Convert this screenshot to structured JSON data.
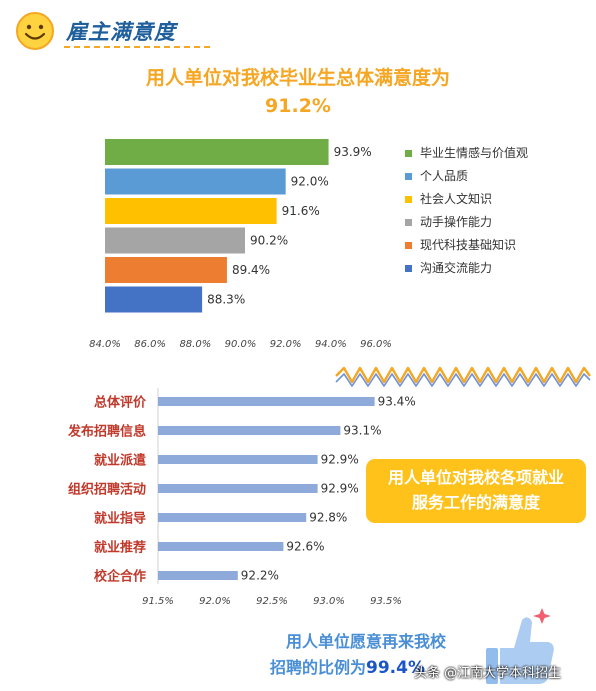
{
  "header": {
    "title": "雇主满意度"
  },
  "chart_data": [
    {
      "type": "bar",
      "orientation": "horizontal",
      "title": "用人单位对我校毕业生总体满意度为 91.2%",
      "title_line1": "用人单位对我校毕业生总体满意度为",
      "title_line2": "91.2%",
      "categories": [
        "毕业生情感与价值观",
        "个人品质",
        "社会人文知识",
        "动手操作能力",
        "现代科技基础知识",
        "沟通交流能力"
      ],
      "values": [
        93.9,
        92.0,
        91.6,
        90.2,
        89.4,
        88.3
      ],
      "value_labels": [
        "93.9%",
        "92.0%",
        "91.6%",
        "90.2%",
        "89.4%",
        "88.3%"
      ],
      "colors": [
        "#70ad47",
        "#5b9bd5",
        "#ffc000",
        "#a5a5a5",
        "#ed7d31",
        "#4472c4"
      ],
      "xlim": [
        84.0,
        96.0
      ],
      "x_ticks": [
        "84.0%",
        "86.0%",
        "88.0%",
        "90.0%",
        "92.0%",
        "94.0%",
        "96.0%"
      ],
      "legend_position": "right",
      "grid": false
    },
    {
      "type": "bar",
      "orientation": "horizontal",
      "title": "用人单位对我校各项就业服务工作的满意度",
      "title_line1": "用人单位对我校各项就业",
      "title_line2": "服务工作的满意度",
      "categories": [
        "总体评价",
        "发布招聘信息",
        "就业派遣",
        "组织招聘活动",
        "就业指导",
        "就业推荐",
        "校企合作"
      ],
      "values": [
        93.4,
        93.1,
        92.9,
        92.9,
        92.8,
        92.6,
        92.2
      ],
      "value_labels": [
        "93.4%",
        "93.1%",
        "92.9%",
        "92.9%",
        "92.8%",
        "92.6%",
        "92.2%"
      ],
      "color": "#8eaadb",
      "xlim": [
        91.5,
        93.5
      ],
      "x_ticks": [
        "91.5%",
        "92.0%",
        "92.5%",
        "93.0%",
        "93.5%"
      ],
      "grid": false
    }
  ],
  "footer": {
    "line1": "用人单位愿意再来我校",
    "line2_prefix": "招聘的比例为",
    "line2_value": "99.4%"
  },
  "watermark": "头条 @江南大学本科招生"
}
